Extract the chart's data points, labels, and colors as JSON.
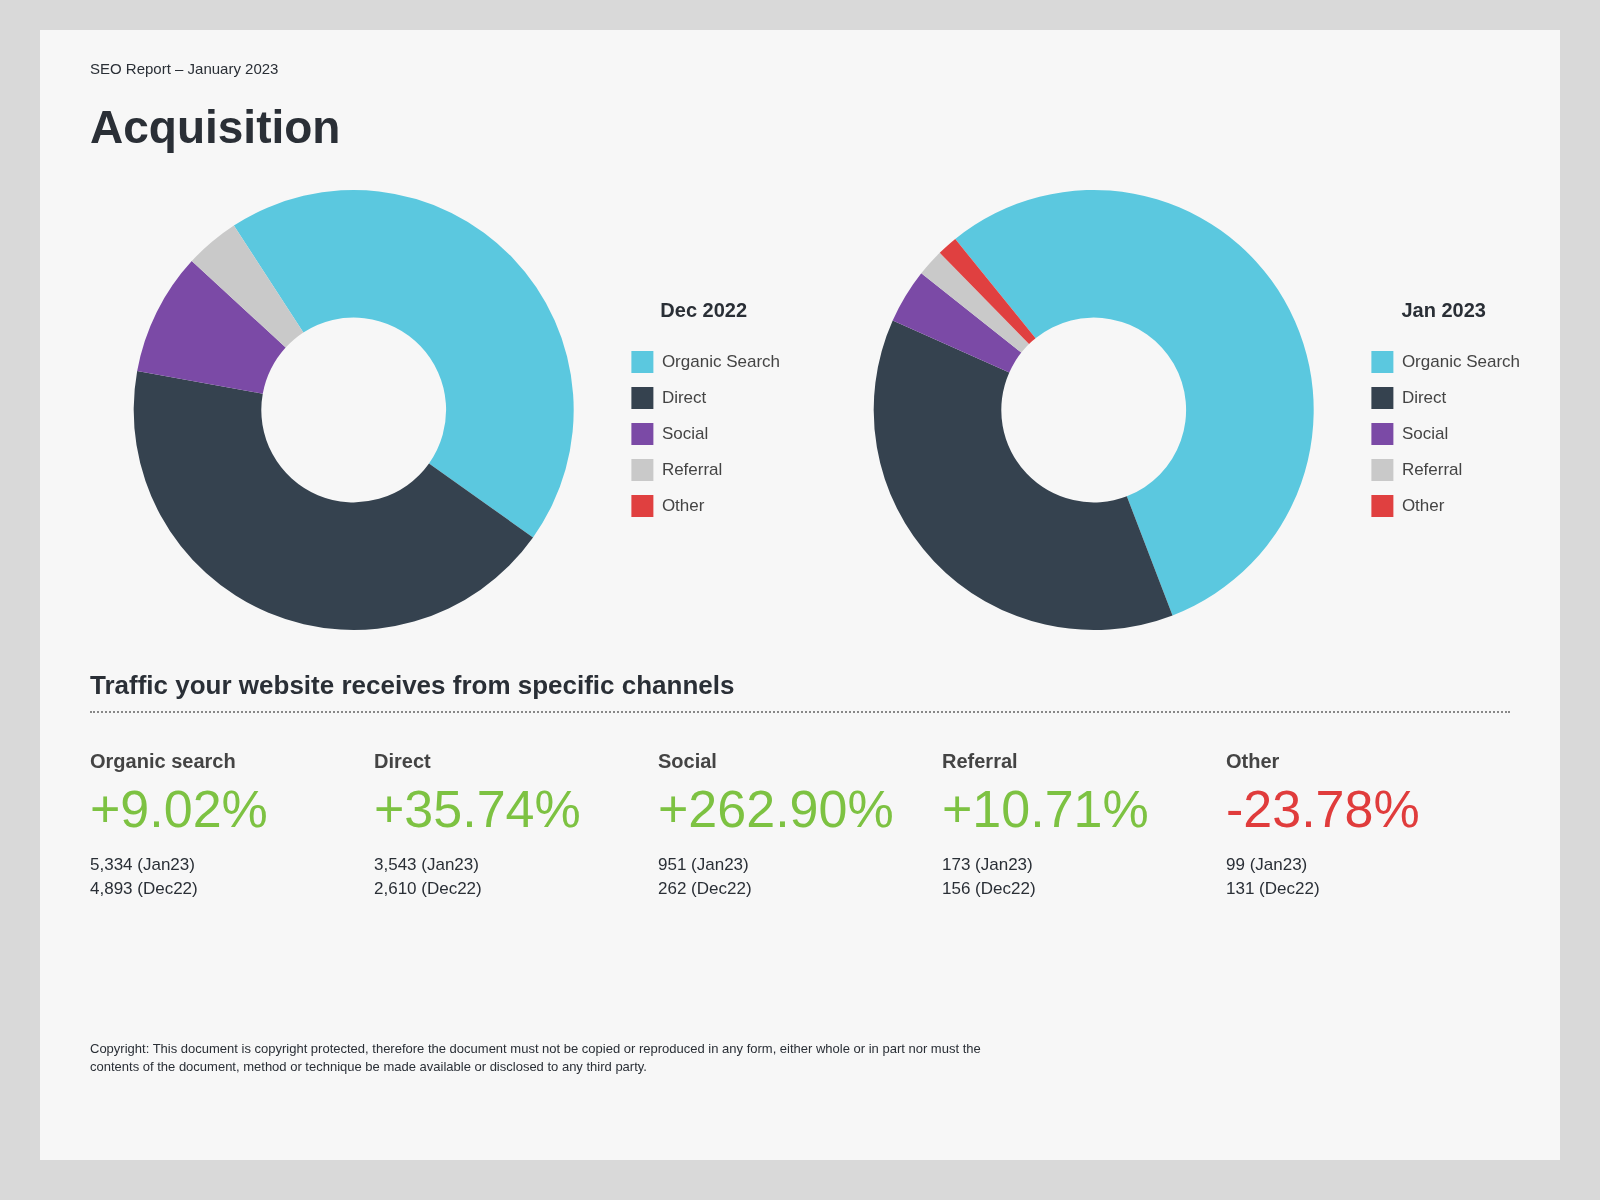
{
  "chart_data": [
    {
      "type": "donut",
      "title": "Acquisition",
      "subtitle": "SEO Report – January 2023",
      "legend_title": "Dec 2022",
      "legend": "right",
      "categories": [
        "Organic Search",
        "Direct",
        "Social",
        "Referral",
        "Other"
      ],
      "values": [
        44,
        43,
        9,
        4,
        0
      ],
      "colors": [
        "#5bc8df",
        "#35424f",
        "#7b4aa6",
        "#c9c9c9",
        "#e04040"
      ]
    },
    {
      "type": "donut",
      "legend_title": "Jan 2023",
      "legend": "right",
      "categories": [
        "Organic Search",
        "Direct",
        "Social",
        "Referral",
        "Other"
      ],
      "values": [
        55,
        37.5,
        4,
        2,
        1.5
      ],
      "colors": [
        "#5bc8df",
        "#35424f",
        "#7b4aa6",
        "#c9c9c9",
        "#e04040"
      ]
    },
    {
      "type": "other",
      "title": "Traffic your website receives from specific channels",
      "categories": [
        "Organic search",
        "Direct",
        "Social",
        "Referral",
        "Other"
      ],
      "value_labels": [
        "+9.02%",
        "+35.74%",
        "+262.90%",
        "+10.71%",
        "-23.78%"
      ],
      "colors": [
        "#7dc242",
        "#7dc242",
        "#7dc242",
        "#7dc242",
        "#e03c3c"
      ],
      "annotations": [
        "5,334 (Jan23)",
        "4,893 (Dec22)",
        "3,543 (Jan23)",
        "2,610 (Dec22)",
        "951 (Jan23)",
        "262 (Dec22)",
        "173 (Jan23)",
        "156 (Dec22)",
        "99 (Jan23)",
        "131 (Dec22)",
        "Copyright: This document is copyright protected, therefore the document must not be copied or reproduced in any form, either whole or in part nor must the contents of the document, method or technique be made available or disclosed to any third party."
      ]
    }
  ]
}
